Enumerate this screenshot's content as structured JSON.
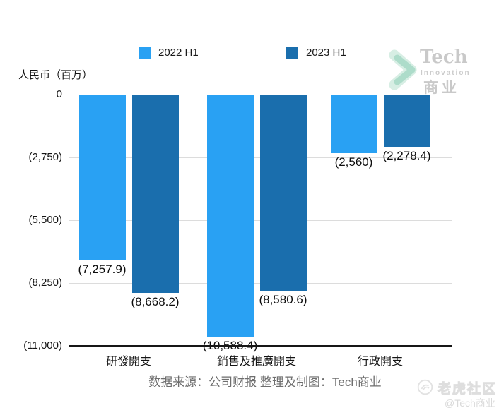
{
  "axes": {
    "y_title": "人民币（百万）"
  },
  "legend": {
    "items": [
      {
        "label": "2022 H1",
        "color": "#29A1F3"
      },
      {
        "label": "2023 H1",
        "color": "#1A6EAD"
      }
    ]
  },
  "chart_data": {
    "type": "bar",
    "title": "",
    "ylabel": "人民币（百万）",
    "categories": [
      "研發開支",
      "銷售及推廣開支",
      "行政開支"
    ],
    "series": [
      {
        "name": "2022 H1",
        "color": "#29A1F3",
        "values": [
          -7257.9,
          -10588.4,
          -2560
        ],
        "labels": [
          "(7,257.9)",
          "(10,588.4)",
          "(2,560)"
        ]
      },
      {
        "name": "2023 H1",
        "color": "#1A6EAD",
        "values": [
          -8668.2,
          -8580.6,
          -2278.4
        ],
        "labels": [
          "(8,668.2)",
          "(8,580.6)",
          "(2,278.4)"
        ]
      }
    ],
    "ylim": [
      -11000,
      0
    ],
    "y_ticks": [
      {
        "value": 0,
        "label": "0"
      },
      {
        "value": -2750,
        "label": "(2,750)"
      },
      {
        "value": -5500,
        "label": "(5,500)"
      },
      {
        "value": -8250,
        "label": "(8,250)"
      },
      {
        "value": -11000,
        "label": "(11,000)"
      }
    ],
    "grid": "horizontal",
    "legend_position": "top"
  },
  "watermark_top": {
    "brand": "Tech",
    "sub": "Innovation",
    "cn": "商业",
    "chevron_color": "#b7ddcf"
  },
  "watermark_bottom": {
    "community": "老虎社区",
    "handle": "@Tech商业"
  },
  "footer": {
    "source": "数据来源：公司财报 整理及制图：Tech商业"
  }
}
